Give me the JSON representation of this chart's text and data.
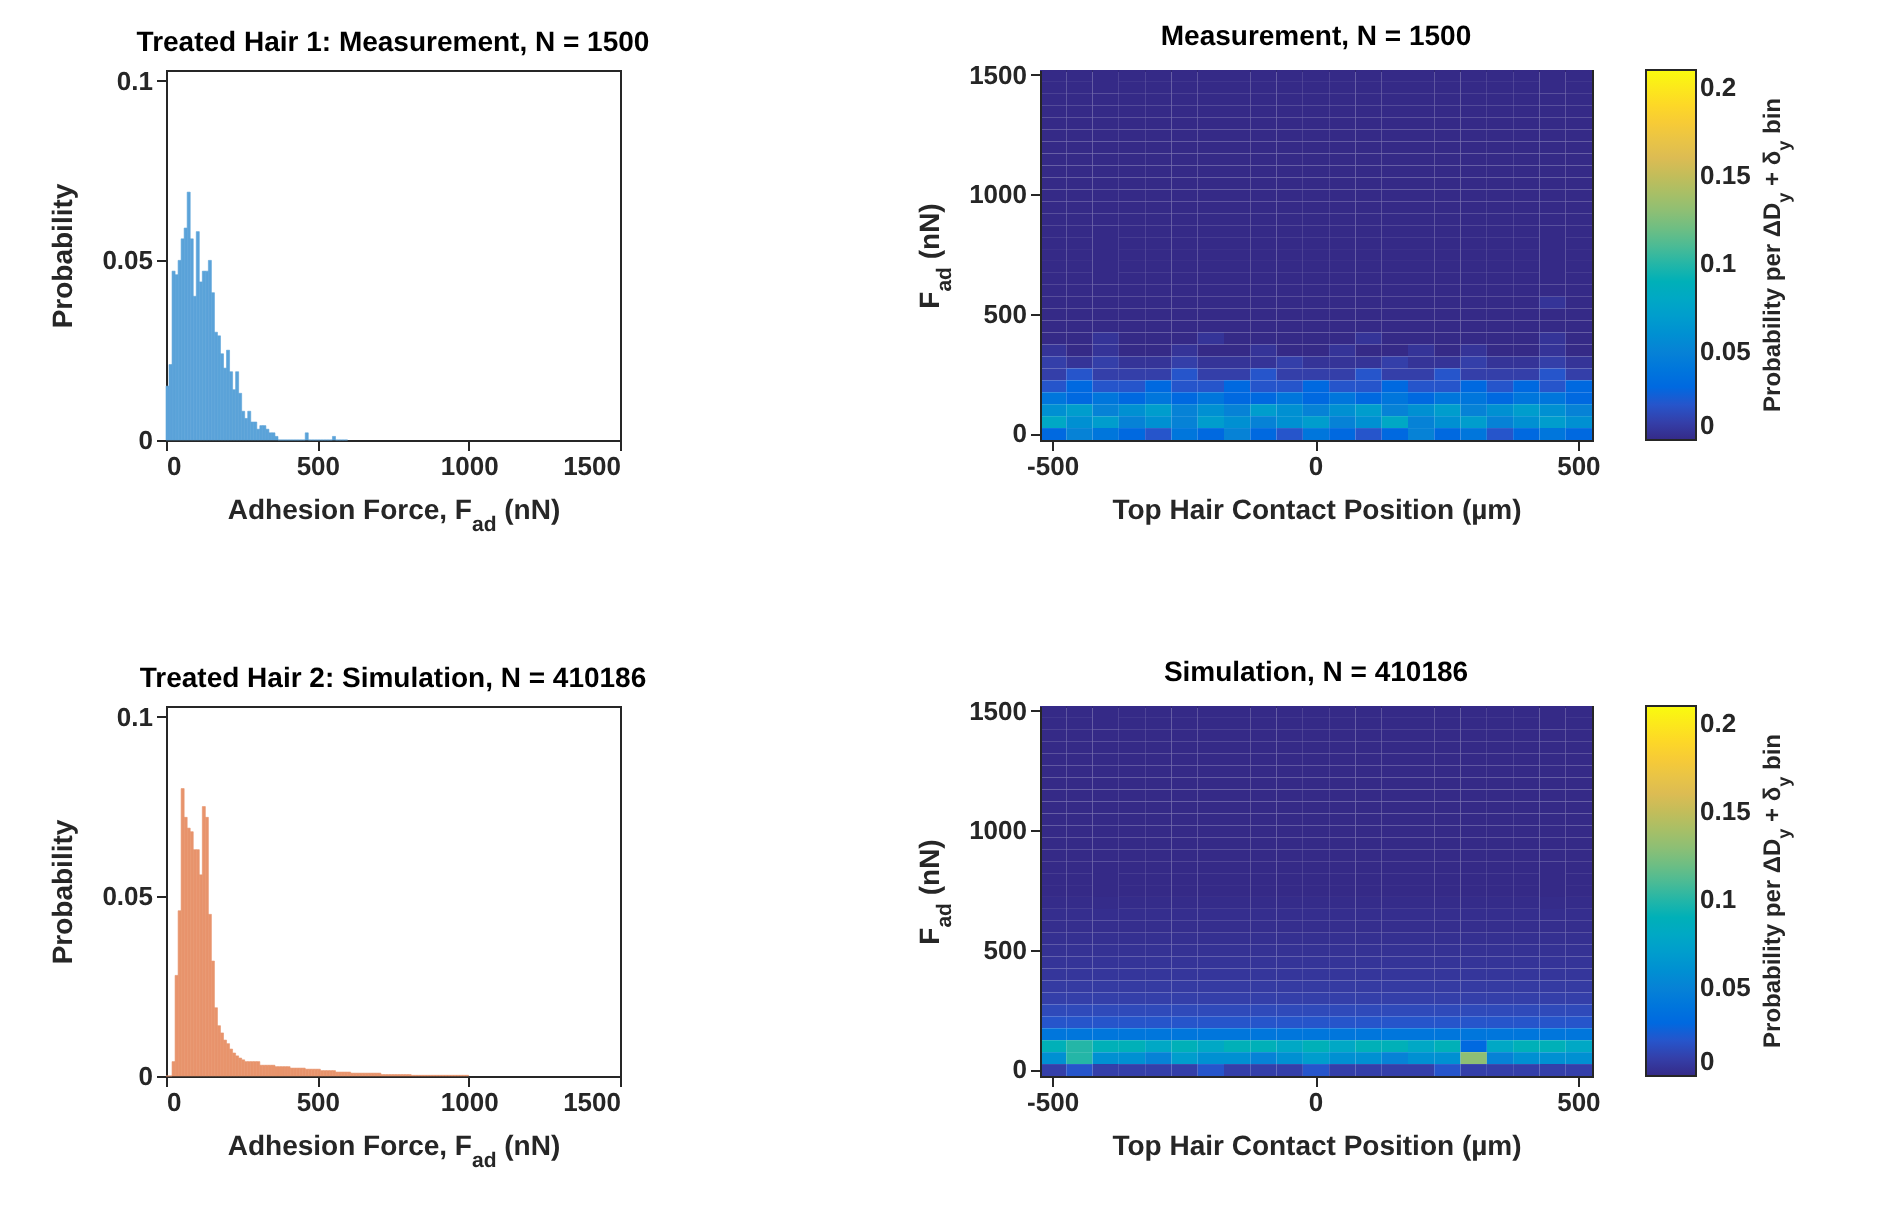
{
  "chart_data": [
    {
      "type": "histogram",
      "title": "Treated Hair 1: Measurement, N = 1500",
      "xlabel": "Adhesion Force, F$_{ad}$ (nN)",
      "ylabel": "Probability",
      "color": "#5ba3d9",
      "xlim": [
        0,
        1500
      ],
      "xticks": [
        0,
        500,
        1000,
        1500
      ],
      "ylim": [
        0,
        0.103
      ],
      "yticks": [
        0,
        0.05,
        0.1
      ],
      "bins": [
        0,
        10,
        20,
        30,
        40,
        50,
        60,
        70,
        80,
        90,
        100,
        110,
        120,
        130,
        140,
        150,
        160,
        170,
        180,
        190,
        200,
        210,
        220,
        230,
        240,
        250,
        260,
        270,
        280,
        290,
        300,
        310,
        320,
        330,
        340,
        350,
        360,
        370,
        380,
        390,
        400,
        410,
        420,
        430,
        440,
        450,
        460,
        470,
        480,
        490,
        500,
        510,
        520,
        530,
        540,
        550,
        560,
        570,
        580,
        590,
        600
      ],
      "values": [
        0.015,
        0.021,
        0.047,
        0.046,
        0.05,
        0.056,
        0.059,
        0.069,
        0.056,
        0.04,
        0.058,
        0.044,
        0.047,
        0.047,
        0.05,
        0.041,
        0.03,
        0.029,
        0.024,
        0.02,
        0.025,
        0.019,
        0.014,
        0.019,
        0.013,
        0.008,
        0.006,
        0.008,
        0.005,
        0.005,
        0.003,
        0.004,
        0.004,
        0.003,
        0.002,
        0.002,
        0.001,
        0,
        0,
        0,
        0,
        0,
        0,
        0,
        0,
        0,
        0.002,
        0,
        0,
        0,
        0,
        0,
        0,
        0,
        0,
        0.001,
        0,
        0,
        0,
        0
      ]
    },
    {
      "type": "heatmap",
      "title": "Measurement, N = 1500",
      "xlabel": "Top Hair Contact Position (µm)",
      "ylabel": "F$_{ad}$ (nN)",
      "clabel": "Probability per ΔD$_{y}$ + δ$_{y}$ bin",
      "clim": [
        0,
        0.21
      ],
      "cticks": [
        0,
        0.05,
        0.1,
        0.15,
        0.2
      ],
      "categories": [
        "-500",
        null,
        null,
        null,
        null,
        null,
        null,
        null,
        null,
        null,
        "0",
        null,
        null,
        null,
        null,
        null,
        null,
        null,
        null,
        null,
        "500"
      ],
      "y_categories": [
        "1500",
        null,
        null,
        null,
        null,
        null,
        null,
        null,
        null,
        null,
        "1000",
        null,
        null,
        null,
        null,
        null,
        null,
        null,
        null,
        null,
        "500",
        null,
        null,
        null,
        null,
        null,
        null,
        null,
        null,
        null,
        "0"
      ],
      "cells": [
        [
          0,
          0,
          0,
          0,
          0,
          0,
          0,
          0,
          0,
          0,
          0,
          0,
          0,
          0,
          0,
          0,
          0,
          0,
          0,
          0,
          0
        ],
        [
          0,
          0,
          0,
          0,
          0,
          0,
          0,
          0,
          0,
          0,
          0,
          0,
          0,
          0,
          0,
          0,
          0,
          0,
          0,
          0,
          0
        ],
        [
          0,
          0,
          0,
          0,
          0,
          0,
          0,
          0,
          0,
          0,
          0,
          0,
          0,
          0,
          0,
          0,
          0,
          0,
          0,
          0,
          0
        ],
        [
          0,
          0,
          0,
          0,
          0,
          0,
          0,
          0,
          0,
          0,
          0,
          0,
          0,
          0,
          0,
          0,
          0,
          0,
          0,
          0,
          0
        ],
        [
          0,
          0,
          0,
          0,
          0,
          0,
          0,
          0,
          0,
          0,
          0,
          0,
          0,
          0,
          0,
          0,
          0,
          0,
          0,
          0,
          0
        ],
        [
          0,
          0,
          0,
          0,
          0,
          0,
          0,
          0,
          0,
          0,
          0,
          0,
          0,
          0,
          0,
          0,
          0,
          0,
          0,
          0,
          0
        ],
        [
          0,
          0,
          0,
          0,
          0,
          0,
          0,
          0,
          0,
          0,
          0,
          0,
          0,
          0,
          0,
          0,
          0,
          0,
          0,
          0,
          0
        ],
        [
          0,
          0,
          0,
          0,
          0,
          0,
          0,
          0,
          0,
          0,
          0,
          0,
          0,
          0,
          0,
          0,
          0,
          0,
          0,
          0,
          0
        ],
        [
          0,
          0,
          0,
          0,
          0,
          0,
          0,
          0,
          0,
          0,
          0,
          0,
          0,
          0,
          0,
          0,
          0,
          0,
          0,
          0,
          0
        ],
        [
          0,
          0,
          0,
          0,
          0,
          0,
          0,
          0,
          0,
          0,
          0,
          0,
          0,
          0,
          0,
          0,
          0,
          0,
          0,
          0,
          0
        ],
        [
          0,
          0,
          0,
          0,
          0,
          0,
          0,
          0,
          0,
          0,
          0,
          0,
          0,
          0,
          0,
          0,
          0,
          0,
          0,
          0,
          0
        ],
        [
          0,
          0,
          0,
          0,
          0,
          0,
          0,
          0,
          0,
          0,
          0,
          0,
          0,
          0,
          0,
          0,
          0,
          0,
          0,
          0,
          0
        ],
        [
          0,
          0,
          0,
          0,
          0,
          0,
          0,
          0,
          0,
          0,
          0,
          0,
          0,
          0,
          0,
          0,
          0,
          0,
          0,
          0,
          0
        ],
        [
          0,
          0,
          0,
          0,
          0,
          0,
          0,
          0,
          0,
          0,
          0,
          0,
          0,
          0,
          0,
          0,
          0,
          0,
          0,
          0,
          0
        ],
        [
          0,
          0,
          0,
          0,
          0,
          0,
          0,
          0,
          0,
          0,
          0,
          0,
          0,
          0,
          0,
          0,
          0,
          0,
          0,
          0,
          0
        ],
        [
          0,
          0,
          0,
          0,
          0,
          0,
          0,
          0,
          0,
          0,
          0,
          0,
          0,
          0,
          0,
          0,
          0,
          0,
          0,
          0,
          0
        ],
        [
          0,
          0,
          0,
          0,
          0,
          0,
          0,
          0,
          0,
          0,
          0,
          0,
          0,
          0,
          0,
          0,
          0,
          0,
          0,
          0,
          0
        ],
        [
          0,
          0,
          0,
          0,
          0,
          0,
          0,
          0,
          0,
          0,
          0,
          0,
          0,
          0,
          0,
          0,
          0,
          0,
          0,
          0,
          0
        ],
        [
          0,
          0,
          0,
          0,
          0,
          0,
          0,
          0,
          0,
          0,
          0,
          0,
          0,
          0,
          0,
          0,
          0,
          0,
          0,
          0,
          0
        ],
        [
          0,
          0,
          0,
          0,
          0,
          0,
          0,
          0,
          0,
          0,
          0,
          0,
          0,
          0,
          0,
          0,
          0,
          0,
          0,
          0.005,
          0
        ],
        [
          0,
          0,
          0,
          0,
          0,
          0,
          0,
          0,
          0,
          0,
          0,
          0,
          0,
          0,
          0,
          0,
          0,
          0,
          0,
          0,
          0
        ],
        [
          0,
          0,
          0,
          0,
          0,
          0,
          0,
          0,
          0,
          0,
          0,
          0,
          0,
          0,
          0,
          0,
          0,
          0,
          0,
          0,
          0
        ],
        [
          0,
          0,
          0.005,
          0,
          0,
          0,
          0.005,
          0,
          0,
          0,
          0,
          0,
          0.005,
          0,
          0,
          0,
          0,
          0,
          0,
          0.005,
          0
        ],
        [
          0.005,
          0,
          0.005,
          0,
          0,
          0.005,
          0,
          0,
          0.005,
          0,
          0,
          0.005,
          0,
          0,
          0.005,
          0,
          0.005,
          0,
          0,
          0.005,
          0
        ],
        [
          0.01,
          0.005,
          0.01,
          0.005,
          0.005,
          0.01,
          0.005,
          0.005,
          0.005,
          0.01,
          0.005,
          0.005,
          0.005,
          0.01,
          0.005,
          0.005,
          0.01,
          0.005,
          0.005,
          0.01,
          0.005
        ],
        [
          0.01,
          0.02,
          0.01,
          0.01,
          0.01,
          0.02,
          0.01,
          0.01,
          0.02,
          0.01,
          0.01,
          0.01,
          0.02,
          0.01,
          0.01,
          0.02,
          0.01,
          0.01,
          0.01,
          0.02,
          0.01
        ],
        [
          0.02,
          0.03,
          0.02,
          0.02,
          0.03,
          0.02,
          0.02,
          0.03,
          0.02,
          0.02,
          0.03,
          0.02,
          0.02,
          0.03,
          0.02,
          0.02,
          0.03,
          0.02,
          0.03,
          0.02,
          0.03
        ],
        [
          0.04,
          0.03,
          0.04,
          0.03,
          0.04,
          0.03,
          0.04,
          0.03,
          0.03,
          0.04,
          0.03,
          0.04,
          0.03,
          0.04,
          0.03,
          0.04,
          0.04,
          0.03,
          0.04,
          0.04,
          0.03
        ],
        [
          0.06,
          0.07,
          0.05,
          0.06,
          0.07,
          0.05,
          0.06,
          0.05,
          0.07,
          0.06,
          0.05,
          0.06,
          0.07,
          0.05,
          0.06,
          0.07,
          0.05,
          0.06,
          0.07,
          0.06,
          0.05
        ],
        [
          0.08,
          0.06,
          0.07,
          0.05,
          0.06,
          0.05,
          0.07,
          0.06,
          0.05,
          0.06,
          0.07,
          0.05,
          0.06,
          0.08,
          0.05,
          0.06,
          0.07,
          0.05,
          0.06,
          0.07,
          0.06
        ],
        [
          0.03,
          0.05,
          0.04,
          0.03,
          0.02,
          0.04,
          0.03,
          0.05,
          0.03,
          0.02,
          0.04,
          0.03,
          0.02,
          0.03,
          0.05,
          0.03,
          0.04,
          0.02,
          0.03,
          0.04,
          0.03
        ]
      ]
    },
    {
      "type": "histogram",
      "title": "Treated Hair 2: Simulation, N = 410186",
      "xlabel": "Adhesion Force, F$_{ad}$ (nN)",
      "ylabel": "Probability",
      "color": "#e8946c",
      "xlim": [
        0,
        1500
      ],
      "xticks": [
        0,
        500,
        1000,
        1500
      ],
      "ylim": [
        0,
        0.103
      ],
      "yticks": [
        0,
        0.05,
        0.1
      ],
      "bins": [
        0,
        10,
        20,
        30,
        40,
        50,
        60,
        70,
        80,
        90,
        100,
        110,
        120,
        130,
        140,
        150,
        160,
        170,
        180,
        190,
        200,
        210,
        220,
        230,
        240,
        250,
        260,
        270,
        280,
        290,
        300,
        310,
        320,
        330,
        340,
        350,
        360,
        370,
        380,
        390,
        400,
        410,
        420,
        430,
        440,
        450,
        460,
        470,
        480,
        490,
        500,
        510,
        520,
        530,
        540,
        550,
        560,
        570,
        580,
        590,
        600,
        610,
        620,
        630,
        640,
        650,
        660,
        670,
        680,
        690,
        700,
        710,
        720,
        730,
        740,
        750,
        760,
        770,
        780,
        790,
        800,
        810,
        820,
        830,
        840,
        850,
        860,
        870,
        880,
        890,
        900,
        910,
        920,
        930,
        940,
        950,
        960,
        970,
        980,
        990,
        1000
      ],
      "values": [
        0,
        0,
        0.004,
        0.028,
        0.046,
        0.08,
        0.072,
        0.069,
        0.068,
        0.063,
        0.063,
        0.056,
        0.075,
        0.072,
        0.045,
        0.032,
        0.019,
        0.014,
        0.012,
        0.01,
        0.009,
        0.0075,
        0.0064,
        0.0056,
        0.005,
        0.0045,
        0.004,
        0.004,
        0.004,
        0.004,
        0.004,
        0.003,
        0.003,
        0.003,
        0.003,
        0.003,
        0.0026,
        0.0026,
        0.0026,
        0.0026,
        0.0026,
        0.0022,
        0.0022,
        0.0022,
        0.0022,
        0.0022,
        0.0019,
        0.0019,
        0.0019,
        0.0019,
        0.0019,
        0.0015,
        0.0015,
        0.0015,
        0.0015,
        0.0015,
        0.0011,
        0.0011,
        0.0011,
        0.0011,
        0.0011,
        0.0008,
        0.0008,
        0.0008,
        0.0008,
        0.0008,
        0.0008,
        0.0008,
        0.0008,
        0.0008,
        0.0008,
        0.0004,
        0.0004,
        0.0004,
        0.0004,
        0.0004,
        0.0004,
        0.0004,
        0.0004,
        0.0004,
        0.0004,
        0.0002,
        0.0002,
        0.0002,
        0.0002,
        0.0002,
        0.0002,
        0.0002,
        0.0002,
        0.0002,
        0.0002,
        0.0002,
        0.0002,
        0.0002,
        0.0002,
        0.0002,
        0.0002,
        0.0002,
        0.0002,
        0.0002
      ]
    },
    {
      "type": "heatmap",
      "title": "Simulation, N = 410186",
      "xlabel": "Top Hair Contact Position (µm)",
      "ylabel": "F$_{ad}$ (nN)",
      "clabel": "Probability per ΔD$_{y}$ + δ$_{y}$ bin",
      "clim": [
        0,
        0.21
      ],
      "cticks": [
        0,
        0.05,
        0.1,
        0.15,
        0.2
      ],
      "categories": [
        "-500",
        null,
        null,
        null,
        null,
        null,
        null,
        null,
        null,
        null,
        "0",
        null,
        null,
        null,
        null,
        null,
        null,
        null,
        null,
        null,
        "500"
      ],
      "y_categories": [
        "1500",
        null,
        null,
        null,
        null,
        null,
        null,
        null,
        null,
        null,
        "1000",
        null,
        null,
        null,
        null,
        null,
        null,
        null,
        null,
        null,
        "500",
        null,
        null,
        null,
        null,
        null,
        null,
        null,
        null,
        null,
        "0"
      ],
      "cells": [
        [
          0,
          0,
          0,
          0,
          0,
          0,
          0,
          0,
          0,
          0,
          0,
          0,
          0,
          0,
          0,
          0,
          0,
          0,
          0,
          0,
          0
        ],
        [
          0,
          0,
          0,
          0,
          0,
          0,
          0,
          0,
          0,
          0,
          0,
          0,
          0,
          0,
          0,
          0,
          0,
          0,
          0,
          0,
          0
        ],
        [
          0,
          0,
          0,
          0,
          0,
          0,
          0,
          0,
          0,
          0,
          0,
          0,
          0,
          0,
          0,
          0,
          0,
          0,
          0,
          0,
          0
        ],
        [
          0,
          0,
          0,
          0,
          0,
          0,
          0,
          0,
          0,
          0,
          0,
          0,
          0,
          0,
          0,
          0,
          0,
          0,
          0,
          0,
          0
        ],
        [
          0,
          0,
          0,
          0,
          0,
          0,
          0,
          0,
          0,
          0,
          0,
          0,
          0,
          0,
          0,
          0,
          0,
          0,
          0,
          0,
          0
        ],
        [
          0,
          0,
          0,
          0,
          0,
          0,
          0,
          0,
          0,
          0,
          0,
          0,
          0,
          0,
          0,
          0,
          0,
          0,
          0,
          0,
          0
        ],
        [
          0,
          0,
          0,
          0,
          0,
          0,
          0,
          0,
          0,
          0,
          0,
          0,
          0,
          0,
          0,
          0,
          0,
          0,
          0,
          0,
          0
        ],
        [
          0,
          0,
          0,
          0,
          0,
          0,
          0,
          0,
          0,
          0,
          0,
          0,
          0,
          0,
          0,
          0,
          0,
          0,
          0,
          0,
          0
        ],
        [
          0,
          0,
          0,
          0,
          0,
          0,
          0,
          0,
          0,
          0,
          0,
          0,
          0,
          0,
          0,
          0,
          0,
          0,
          0,
          0,
          0
        ],
        [
          0,
          0,
          0,
          0,
          0,
          0,
          0,
          0,
          0,
          0,
          0,
          0,
          0,
          0,
          0,
          0,
          0,
          0,
          0,
          0,
          0
        ],
        [
          0,
          0,
          0,
          0,
          0,
          0,
          0,
          0,
          0,
          0,
          0,
          0,
          0,
          0,
          0,
          0,
          0,
          0,
          0,
          0,
          0
        ],
        [
          0,
          0,
          0,
          0,
          0,
          0,
          0,
          0,
          0,
          0,
          0,
          0,
          0,
          0,
          0,
          0,
          0,
          0,
          0,
          0,
          0
        ],
        [
          0,
          0,
          0,
          0,
          0,
          0,
          0,
          0,
          0,
          0,
          0,
          0,
          0,
          0,
          0,
          0,
          0,
          0,
          0,
          0,
          0
        ],
        [
          0,
          0,
          0,
          0,
          0,
          0,
          0,
          0,
          0,
          0,
          0,
          0,
          0,
          0,
          0,
          0,
          0,
          0,
          0,
          0,
          0
        ],
        [
          0,
          0,
          0,
          0,
          0,
          0,
          0,
          0,
          0,
          0,
          0,
          0,
          0,
          0,
          0,
          0,
          0,
          0,
          0,
          0,
          0
        ],
        [
          0,
          0,
          0,
          0,
          0,
          0,
          0,
          0,
          0,
          0,
          0,
          0,
          0,
          0,
          0,
          0,
          0,
          0,
          0,
          0,
          0
        ],
        [
          0.001,
          0.001,
          0.001,
          0.001,
          0.001,
          0.001,
          0.001,
          0.001,
          0.001,
          0.001,
          0.001,
          0.001,
          0.001,
          0.001,
          0.001,
          0.001,
          0.001,
          0.001,
          0.001,
          0.001,
          0.001
        ],
        [
          0.002,
          0.002,
          0.002,
          0.002,
          0.002,
          0.002,
          0.002,
          0.002,
          0.002,
          0.002,
          0.002,
          0.002,
          0.002,
          0.002,
          0.002,
          0.002,
          0.002,
          0.002,
          0.002,
          0.002,
          0.002
        ],
        [
          0.002,
          0.002,
          0.002,
          0.002,
          0.002,
          0.002,
          0.002,
          0.002,
          0.002,
          0.002,
          0.002,
          0.002,
          0.002,
          0.002,
          0.002,
          0.002,
          0.002,
          0.002,
          0.002,
          0.002,
          0.002
        ],
        [
          0.003,
          0.003,
          0.003,
          0.003,
          0.003,
          0.003,
          0.003,
          0.003,
          0.003,
          0.003,
          0.003,
          0.003,
          0.003,
          0.003,
          0.003,
          0.003,
          0.003,
          0.003,
          0.003,
          0.003,
          0.003
        ],
        [
          0.004,
          0.004,
          0.004,
          0.004,
          0.004,
          0.004,
          0.004,
          0.004,
          0.004,
          0.004,
          0.004,
          0.004,
          0.004,
          0.004,
          0.004,
          0.004,
          0.004,
          0.004,
          0.004,
          0.004,
          0.004
        ],
        [
          0.005,
          0.005,
          0.005,
          0.005,
          0.005,
          0.005,
          0.005,
          0.005,
          0.005,
          0.005,
          0.005,
          0.005,
          0.005,
          0.005,
          0.005,
          0.005,
          0.005,
          0.005,
          0.005,
          0.005,
          0.005
        ],
        [
          0.006,
          0.006,
          0.006,
          0.006,
          0.006,
          0.006,
          0.006,
          0.006,
          0.006,
          0.006,
          0.006,
          0.006,
          0.006,
          0.006,
          0.006,
          0.006,
          0.006,
          0.006,
          0.006,
          0.006,
          0.006
        ],
        [
          0.008,
          0.008,
          0.008,
          0.008,
          0.008,
          0.008,
          0.008,
          0.008,
          0.008,
          0.008,
          0.008,
          0.008,
          0.008,
          0.008,
          0.008,
          0.008,
          0.008,
          0.008,
          0.008,
          0.008,
          0.008
        ],
        [
          0.01,
          0.01,
          0.01,
          0.01,
          0.01,
          0.01,
          0.01,
          0.01,
          0.01,
          0.01,
          0.01,
          0.01,
          0.01,
          0.01,
          0.01,
          0.01,
          0.01,
          0.01,
          0.01,
          0.01,
          0.01
        ],
        [
          0.015,
          0.015,
          0.015,
          0.015,
          0.015,
          0.015,
          0.015,
          0.015,
          0.015,
          0.015,
          0.015,
          0.015,
          0.015,
          0.015,
          0.015,
          0.015,
          0.015,
          0.015,
          0.015,
          0.015,
          0.015
        ],
        [
          0.02,
          0.02,
          0.02,
          0.02,
          0.02,
          0.02,
          0.02,
          0.02,
          0.02,
          0.02,
          0.02,
          0.02,
          0.02,
          0.02,
          0.02,
          0.02,
          0.02,
          0.02,
          0.02,
          0.02,
          0.02
        ],
        [
          0.04,
          0.04,
          0.04,
          0.04,
          0.04,
          0.04,
          0.04,
          0.04,
          0.04,
          0.04,
          0.04,
          0.04,
          0.04,
          0.04,
          0.04,
          0.04,
          0.04,
          0.04,
          0.04,
          0.04,
          0.04
        ],
        [
          0.09,
          0.1,
          0.09,
          0.09,
          0.08,
          0.09,
          0.08,
          0.09,
          0.09,
          0.08,
          0.09,
          0.08,
          0.09,
          0.09,
          0.08,
          0.09,
          0.03,
          0.08,
          0.09,
          0.09,
          0.08
        ],
        [
          0.06,
          0.1,
          0.06,
          0.06,
          0.05,
          0.07,
          0.06,
          0.06,
          0.05,
          0.06,
          0.07,
          0.06,
          0.06,
          0.05,
          0.06,
          0.06,
          0.13,
          0.05,
          0.06,
          0.06,
          0.06
        ],
        [
          0.01,
          0.02,
          0.01,
          0.01,
          0.01,
          0.01,
          0.02,
          0.01,
          0.01,
          0.01,
          0.02,
          0.01,
          0.01,
          0.01,
          0.01,
          0.02,
          0.01,
          0.01,
          0.01,
          0.01,
          0.01
        ]
      ]
    }
  ]
}
